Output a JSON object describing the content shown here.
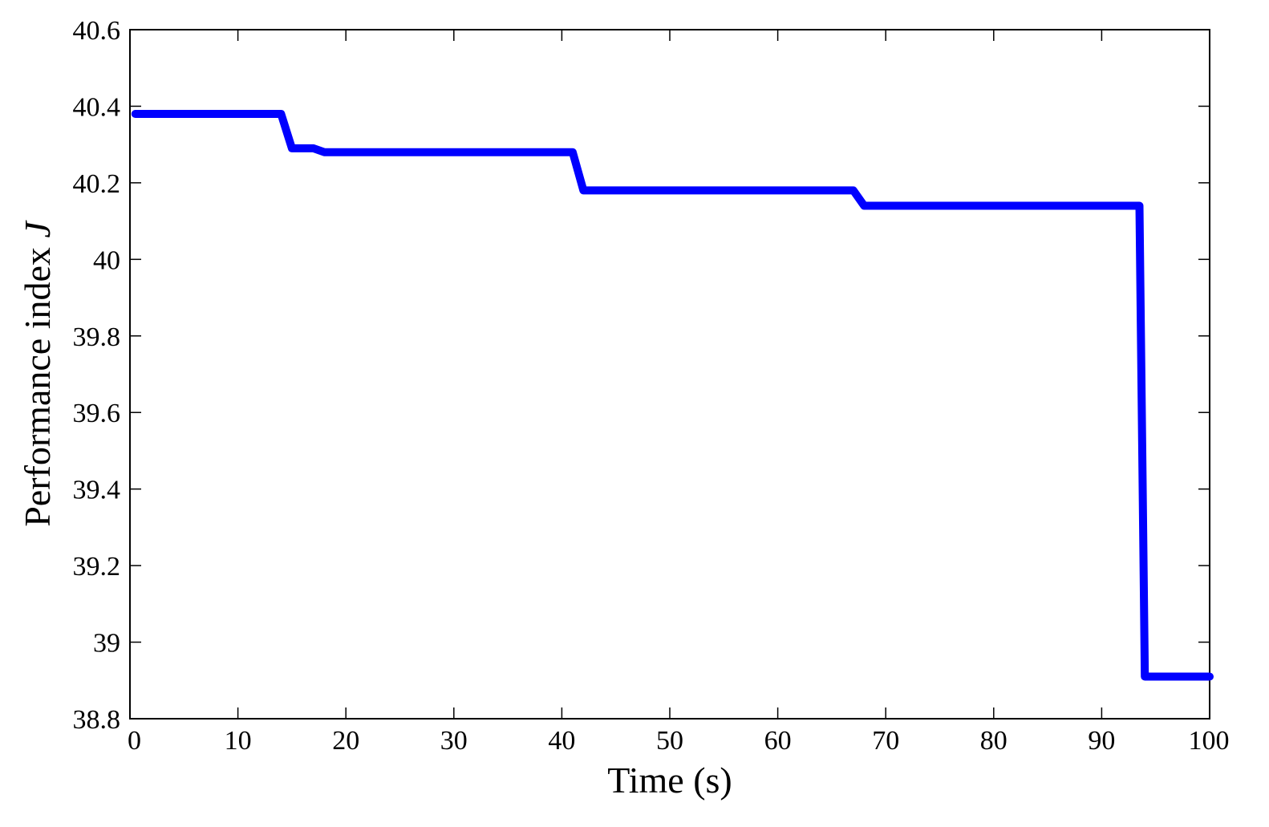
{
  "chart_data": {
    "type": "line",
    "title": "",
    "xlabel": "Time (s)",
    "ylabel": "Performance index",
    "ylabel_symbol": "J",
    "xlim": [
      0,
      100
    ],
    "ylim": [
      38.8,
      40.6
    ],
    "xticks": [
      0,
      10,
      20,
      30,
      40,
      50,
      60,
      70,
      80,
      90,
      100
    ],
    "yticks": [
      38.8,
      39,
      39.2,
      39.4,
      39.6,
      39.8,
      40,
      40.2,
      40.4,
      40.6
    ],
    "xtick_labels": [
      "0",
      "10",
      "20",
      "30",
      "40",
      "50",
      "60",
      "70",
      "80",
      "90",
      "100"
    ],
    "ytick_labels": [
      "38.8",
      "39",
      "39.2",
      "39.4",
      "39.6",
      "39.8",
      "40",
      "40.2",
      "40.4",
      "40.6"
    ],
    "grid": false,
    "series": [
      {
        "color": "#0000ff",
        "x": [
          0.5,
          14,
          15,
          17,
          18,
          41,
          42,
          67,
          68,
          93.5,
          94,
          100
        ],
        "y": [
          40.38,
          40.38,
          40.29,
          40.29,
          40.28,
          40.28,
          40.18,
          40.18,
          40.14,
          40.14,
          38.91,
          38.91
        ]
      }
    ]
  }
}
